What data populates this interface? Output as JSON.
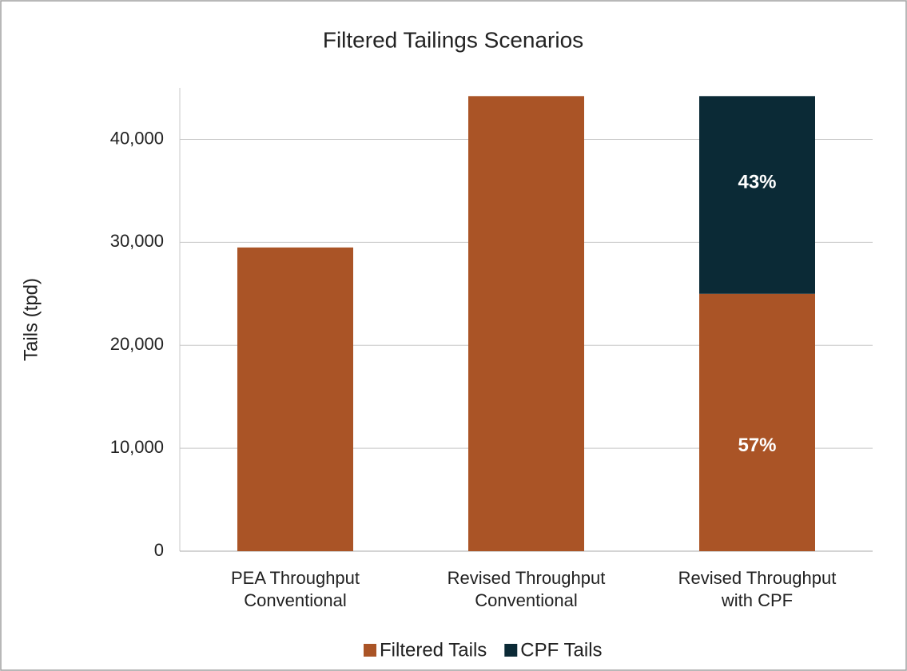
{
  "chart_data": {
    "type": "stacked_bar",
    "title": "Filtered Tailings Scenarios",
    "y_label": "Tails (tpd)",
    "categories": [
      [
        "PEA Throughput",
        "Conventional"
      ],
      [
        "Revised Throughput",
        "Conventional"
      ],
      [
        "Revised Throughput",
        "with CPF"
      ]
    ],
    "series": [
      {
        "name": "Filtered Tails",
        "color": "#aa5426",
        "values": [
          29500,
          44200,
          25000
        ],
        "share_labels": [
          null,
          null,
          "57%"
        ]
      },
      {
        "name": "CPF Tails",
        "color": "#0b2a36",
        "values": [
          null,
          null,
          19200
        ],
        "share_labels": [
          null,
          null,
          "43%"
        ]
      }
    ],
    "ylim": [
      0,
      45000
    ],
    "yticks": [
      0,
      {
        "value": 10000,
        "label": "10,000"
      },
      {
        "value": 20000,
        "label": "20,000"
      },
      {
        "value": 30000,
        "label": "30,000"
      },
      {
        "value": 40000,
        "label": "40,000"
      }
    ],
    "grid": true,
    "legend": "bottom"
  }
}
